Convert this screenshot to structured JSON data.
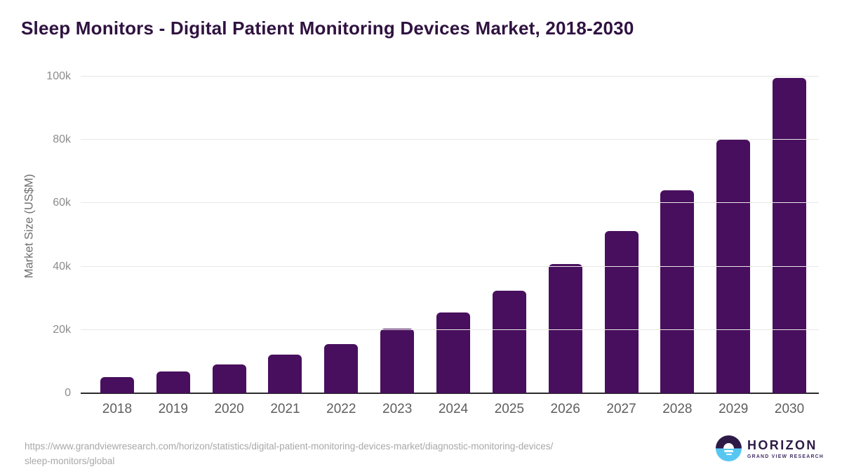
{
  "header": {
    "title": "Sleep Monitors - Digital Patient Monitoring Devices Market, 2018-2030"
  },
  "chart_data": {
    "type": "bar",
    "title": "Sleep Monitors - Digital Patient Monitoring Devices Market, 2018-2030",
    "categories": [
      "2018",
      "2019",
      "2020",
      "2021",
      "2022",
      "2023",
      "2024",
      "2025",
      "2026",
      "2027",
      "2028",
      "2029",
      "2030"
    ],
    "values": [
      5200,
      6900,
      9200,
      12300,
      15600,
      20400,
      25600,
      32300,
      40800,
      51200,
      64000,
      80000,
      99500
    ],
    "xlabel": "",
    "ylabel": "Market Size (US$M)",
    "ylim": [
      0,
      100000
    ],
    "yticks": [
      {
        "value": 0,
        "label": "0"
      },
      {
        "value": 20000,
        "label": "20k"
      },
      {
        "value": 40000,
        "label": "40k"
      },
      {
        "value": 60000,
        "label": "60k"
      },
      {
        "value": 80000,
        "label": "80k"
      },
      {
        "value": 100000,
        "label": "100k"
      }
    ],
    "grid": true,
    "legend": false,
    "bar_color": "#480f5e"
  },
  "colors": {
    "title": "#2f1240",
    "bar": "#480f5e",
    "gridline": "#e7e7e7",
    "axis_line": "#2b2b2b",
    "y_tick_text": "#8c8c8c",
    "x_tick_text": "#5e5e5e",
    "source_text": "#a8a8a8",
    "logo_purple": "#2e1a47",
    "logo_blue": "#57c7f2"
  },
  "footer": {
    "source_url_line1": "https://www.grandviewresearch.com/horizon/statistics/digital-patient-monitoring-devices-market/diagnostic-monitoring-devices/",
    "source_url_line2": "sleep-monitors/global",
    "logo": {
      "wordmark": "HORIZON",
      "subtitle": "GRAND VIEW RESEARCH"
    }
  }
}
